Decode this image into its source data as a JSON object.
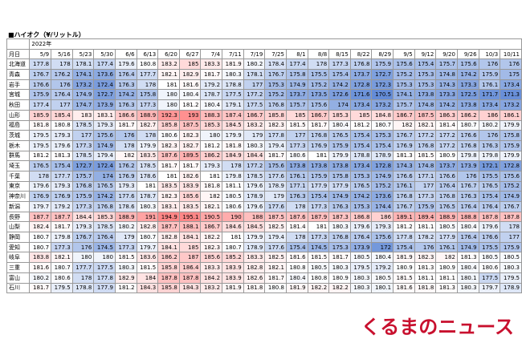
{
  "header": {
    "title": "■ハイオク（¥/リットル）",
    "year": "2022年",
    "date_label": "月日"
  },
  "table": {
    "columns": [
      "5/9",
      "5/16",
      "5/23",
      "5/30",
      "6/6",
      "6/13",
      "6/20",
      "6/27",
      "7/4",
      "7/11",
      "7/19",
      "7/25",
      "8/1",
      "8/8",
      "8/15",
      "8/22",
      "8/29",
      "9/5",
      "9/12",
      "9/20",
      "9/26",
      "10/3",
      "10/11"
    ],
    "rows": [
      {
        "label": "北海道",
        "values": [
          177.8,
          178.0,
          178.1,
          177.4,
          179.6,
          180.8,
          183.2,
          185.0,
          183.3,
          181.9,
          180.2,
          178.4,
          177.4,
          178.0,
          177.3,
          176.8,
          175.9,
          175.6,
          175.4,
          175.7,
          175.6,
          176.0,
          176.0
        ]
      },
      {
        "label": "青森",
        "values": [
          176.7,
          176.2,
          174.1,
          173.6,
          176.4,
          177.7,
          182.1,
          182.9,
          181.7,
          180.3,
          178.1,
          176.7,
          175.8,
          175.5,
          175.4,
          173.7,
          172.7,
          175.2,
          175.3,
          174.8,
          174.2,
          175.9,
          175.0
        ]
      },
      {
        "label": "岩手",
        "values": [
          176.6,
          176.0,
          173.2,
          172.4,
          176.3,
          178.0,
          181.0,
          181.6,
          179.2,
          178.8,
          177.0,
          175.3,
          174.9,
          175.2,
          174.2,
          172.8,
          172.3,
          175.3,
          175.3,
          174.3,
          173.3,
          176.1,
          173.4
        ]
      },
      {
        "label": "宮城",
        "values": [
          175.9,
          176.4,
          174.9,
          172.7,
          174.2,
          175.8,
          180.0,
          180.4,
          178.7,
          177.5,
          177.2,
          175.2,
          173.7,
          173.5,
          172.6,
          171.6,
          170.5,
          174.1,
          173.8,
          173.3,
          172.5,
          171.7,
          171.3
        ]
      },
      {
        "label": "秋田",
        "values": [
          177.4,
          177.0,
          174.7,
          173.9,
          176.3,
          177.3,
          180.0,
          181.2,
          180.4,
          179.1,
          177.5,
          176.8,
          175.7,
          175.6,
          174.0,
          173.4,
          173.2,
          175.7,
          174.8,
          174.2,
          173.8,
          173.4,
          173.2
        ]
      },
      {
        "label": "山形",
        "values": [
          185.9,
          185.4,
          183.0,
          183.1,
          186.6,
          188.9,
          192.3,
          193.0,
          188.3,
          187.4,
          186.7,
          185.8,
          185.0,
          186.7,
          185.3,
          185.0,
          184.8,
          186.7,
          187.5,
          186.3,
          186.2,
          186.0,
          186.1
        ]
      },
      {
        "label": "福島",
        "values": [
          181.8,
          180.8,
          178.5,
          179.3,
          181.7,
          182.7,
          185.8,
          187.5,
          185.3,
          184.5,
          183.2,
          182.3,
          181.5,
          181.7,
          180.4,
          181.2,
          180.7,
          182.0,
          182.1,
          181.4,
          180.7,
          180.2,
          179.9
        ]
      },
      {
        "label": "茨城",
        "values": [
          179.5,
          179.3,
          177.0,
          175.6,
          176.0,
          178.0,
          180.6,
          182.3,
          180.0,
          179.9,
          179.0,
          177.8,
          177.0,
          176.8,
          176.5,
          175.4,
          175.3,
          176.7,
          177.2,
          177.2,
          176.6,
          176.0,
          175.8
        ]
      },
      {
        "label": "栃木",
        "values": [
          179.5,
          179.6,
          177.3,
          174.9,
          178.0,
          179.9,
          182.3,
          182.7,
          181.2,
          181.8,
          180.3,
          179.4,
          177.3,
          176.9,
          175.9,
          175.4,
          175.4,
          176.9,
          176.8,
          177.2,
          176.8,
          176.3,
          175.9
        ]
      },
      {
        "label": "群馬",
        "values": [
          181.2,
          181.3,
          178.5,
          179.4,
          182.0,
          183.5,
          187.6,
          189.5,
          186.2,
          184.9,
          184.4,
          181.7,
          180.6,
          181.0,
          179.9,
          178.8,
          178.9,
          181.3,
          181.5,
          180.9,
          179.8,
          179.8,
          179.9
        ]
      },
      {
        "label": "埼玉",
        "values": [
          176.5,
          175.4,
          172.7,
          172.4,
          176.2,
          178.5,
          181.7,
          181.7,
          179.3,
          178.0,
          177.2,
          175.6,
          173.8,
          173.8,
          173.8,
          173.4,
          172.8,
          174.3,
          174.8,
          173.7,
          173.9,
          172.1,
          172.8
        ]
      },
      {
        "label": "千葉",
        "values": [
          178.0,
          177.7,
          175.7,
          174.0,
          176.9,
          178.6,
          181.0,
          182.6,
          181.0,
          179.8,
          178.5,
          177.6,
          176.1,
          175.9,
          175.8,
          175.3,
          174.9,
          176.6,
          177.1,
          176.6,
          176.0,
          175.5,
          175.6
        ]
      },
      {
        "label": "東京",
        "values": [
          179.6,
          179.3,
          176.8,
          176.5,
          179.3,
          181.0,
          183.5,
          183.9,
          181.8,
          181.1,
          179.6,
          178.9,
          177.1,
          177.9,
          177.9,
          176.5,
          175.2,
          176.1,
          177.0,
          176.4,
          176.7,
          176.5,
          175.2
        ]
      },
      {
        "label": "神奈川",
        "values": [
          176.9,
          176.9,
          175.9,
          174.2,
          177.6,
          178.7,
          182.3,
          185.6,
          182.0,
          180.5,
          178.9,
          179.0,
          176.3,
          175.4,
          174.9,
          174.2,
          173.6,
          176.8,
          177.3,
          176.8,
          176.3,
          175.4,
          174.9
        ]
      },
      {
        "label": "新潟",
        "values": [
          179.7,
          179.2,
          177.3,
          176.8,
          178.6,
          180.3,
          183.1,
          183.5,
          182.1,
          180.6,
          179.6,
          177.6,
          178.0,
          177.3,
          176.3,
          175.3,
          174.4,
          176.7,
          175.9,
          176.5,
          176.4,
          176.4,
          176.7
        ]
      },
      {
        "label": "長野",
        "values": [
          187.7,
          187.7,
          184.4,
          185.3,
          188.9,
          191.0,
          194.9,
          195.1,
          190.5,
          190.0,
          188.0,
          187.5,
          187.6,
          187.9,
          187.3,
          186.8,
          186.0,
          189.1,
          189.4,
          188.9,
          188.8,
          187.8,
          187.8
        ]
      },
      {
        "label": "山梨",
        "values": [
          182.4,
          181.7,
          179.3,
          178.5,
          180.2,
          182.8,
          187.7,
          188.1,
          186.7,
          184.6,
          184.5,
          182.5,
          181.4,
          181.0,
          180.3,
          179.6,
          179.3,
          181.2,
          181.1,
          180.5,
          180.4,
          179.6,
          178.0
        ]
      },
      {
        "label": "静岡",
        "values": [
          180.7,
          179.8,
          176.7,
          176.4,
          179.0,
          180.7,
          182.8,
          184.1,
          182.2,
          181.0,
          179.9,
          179.4,
          178.0,
          177.3,
          176.8,
          176.4,
          175.6,
          177.8,
          178.2,
          177.9,
          176.4,
          176.6,
          177.0
        ]
      },
      {
        "label": "愛知",
        "values": [
          180.7,
          177.3,
          176.0,
          174.5,
          177.3,
          179.7,
          184.1,
          185.0,
          182.3,
          180.7,
          178.9,
          177.6,
          175.4,
          174.5,
          175.3,
          173.9,
          172.0,
          175.4,
          176.0,
          176.1,
          174.9,
          175.5,
          175.9
        ]
      },
      {
        "label": "岐阜",
        "values": [
          183.8,
          182.1,
          180.0,
          180.0,
          181.5,
          183.6,
          186.2,
          187.0,
          185.6,
          185.2,
          183.3,
          182.5,
          181.6,
          181.5,
          181.7,
          180.5,
          180.4,
          181.9,
          182.3,
          182.0,
          181.3,
          180.5,
          180.5
        ]
      },
      {
        "label": "三重",
        "values": [
          181.6,
          180.7,
          177.7,
          177.5,
          180.3,
          181.5,
          185.8,
          186.4,
          183.3,
          183.9,
          182.8,
          182.1,
          180.8,
          180.5,
          180.3,
          179.5,
          179.2,
          180.9,
          181.3,
          180.9,
          180.4,
          180.6,
          180.3
        ]
      },
      {
        "label": "富山",
        "values": [
          180.2,
          180.6,
          178.0,
          177.8,
          182.9,
          184.0,
          187.8,
          187.8,
          184.2,
          183.9,
          182.6,
          181.7,
          180.4,
          180.8,
          180.9,
          180.3,
          180.5,
          181.5,
          181.1,
          181.1,
          180.1,
          177.5,
          179.5
        ]
      },
      {
        "label": "石川",
        "values": [
          181.7,
          179.5,
          178.8,
          177.9,
          181.2,
          184.3,
          185.8,
          184.3,
          183.2,
          181.9,
          181.8,
          180.8,
          181.9,
          182.2,
          182.2,
          180.3,
          180.1,
          181.6,
          181.8,
          181.3,
          180.3,
          179.7,
          178.9
        ]
      }
    ]
  },
  "logo": "くるまのニュース"
}
